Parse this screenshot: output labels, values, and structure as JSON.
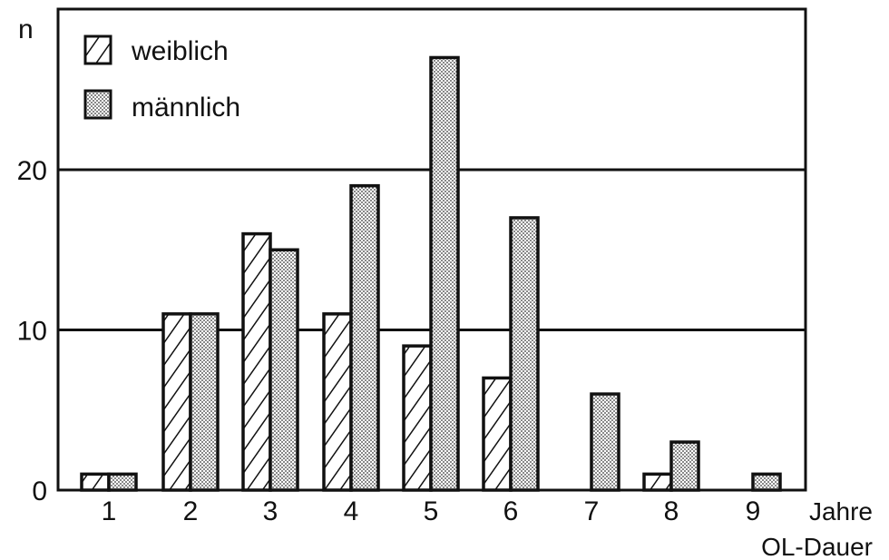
{
  "chart_data": {
    "type": "bar",
    "title": "",
    "ylabel": "n",
    "xlabel_units": "Jahre",
    "xlabel": "OL-Dauer",
    "categories": [
      "1",
      "2",
      "3",
      "4",
      "5",
      "6",
      "7",
      "8",
      "9"
    ],
    "yticks": [
      "0",
      "10",
      "20"
    ],
    "ylim": [
      0,
      30
    ],
    "grid": true,
    "legend": "top-left",
    "series": [
      {
        "name": "weiblich",
        "pattern": "hatched",
        "values": [
          1,
          11,
          16,
          11,
          9,
          7,
          0,
          1,
          0
        ]
      },
      {
        "name": "männlich",
        "pattern": "dotted",
        "values": [
          1,
          11,
          15,
          19,
          27,
          17,
          6,
          3,
          1
        ]
      }
    ],
    "colors": {
      "ink": "#111111",
      "background": "#ffffff"
    }
  }
}
